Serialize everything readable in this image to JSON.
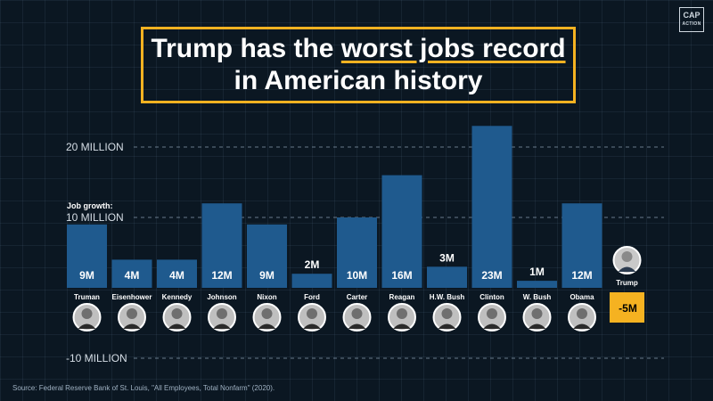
{
  "logo": {
    "line1": "CAP",
    "line2": "ACTION"
  },
  "title": {
    "line1_pre": "Trump has the ",
    "line1_highlight": "worst jobs record",
    "line2": "in American history"
  },
  "source": "Source: Federal Reserve Bank of St. Louis, \"All Employees, Total Nonfarm\" (2020).",
  "colors": {
    "bar": "#1f5a8e",
    "highlight": "#f5b221",
    "background": "#0b1722"
  },
  "chart_data": {
    "type": "bar",
    "categories": [
      "Truman",
      "Eisenhower",
      "Kennedy",
      "Johnson",
      "Nixon",
      "Ford",
      "Carter",
      "Reagan",
      "H.W. Bush",
      "Clinton",
      "W. Bush",
      "Obama",
      "Trump"
    ],
    "values": [
      9,
      4,
      4,
      12,
      9,
      2,
      10,
      16,
      3,
      23,
      1,
      12,
      -5
    ],
    "value_labels": [
      "9M",
      "4M",
      "4M",
      "12M",
      "9M",
      "2M",
      "10M",
      "16M",
      "3M",
      "23M",
      "1M",
      "12M",
      "-5M"
    ],
    "ylim": [
      -10,
      20
    ],
    "ticks": [
      {
        "value": 20,
        "label": "20 MILLION"
      },
      {
        "value": 10,
        "label": "10 MILLION"
      },
      {
        "value": -10,
        "label": "-10 MILLION"
      }
    ],
    "ylabel": "Job growth:",
    "highlight_category": "Trump",
    "grid": true
  }
}
